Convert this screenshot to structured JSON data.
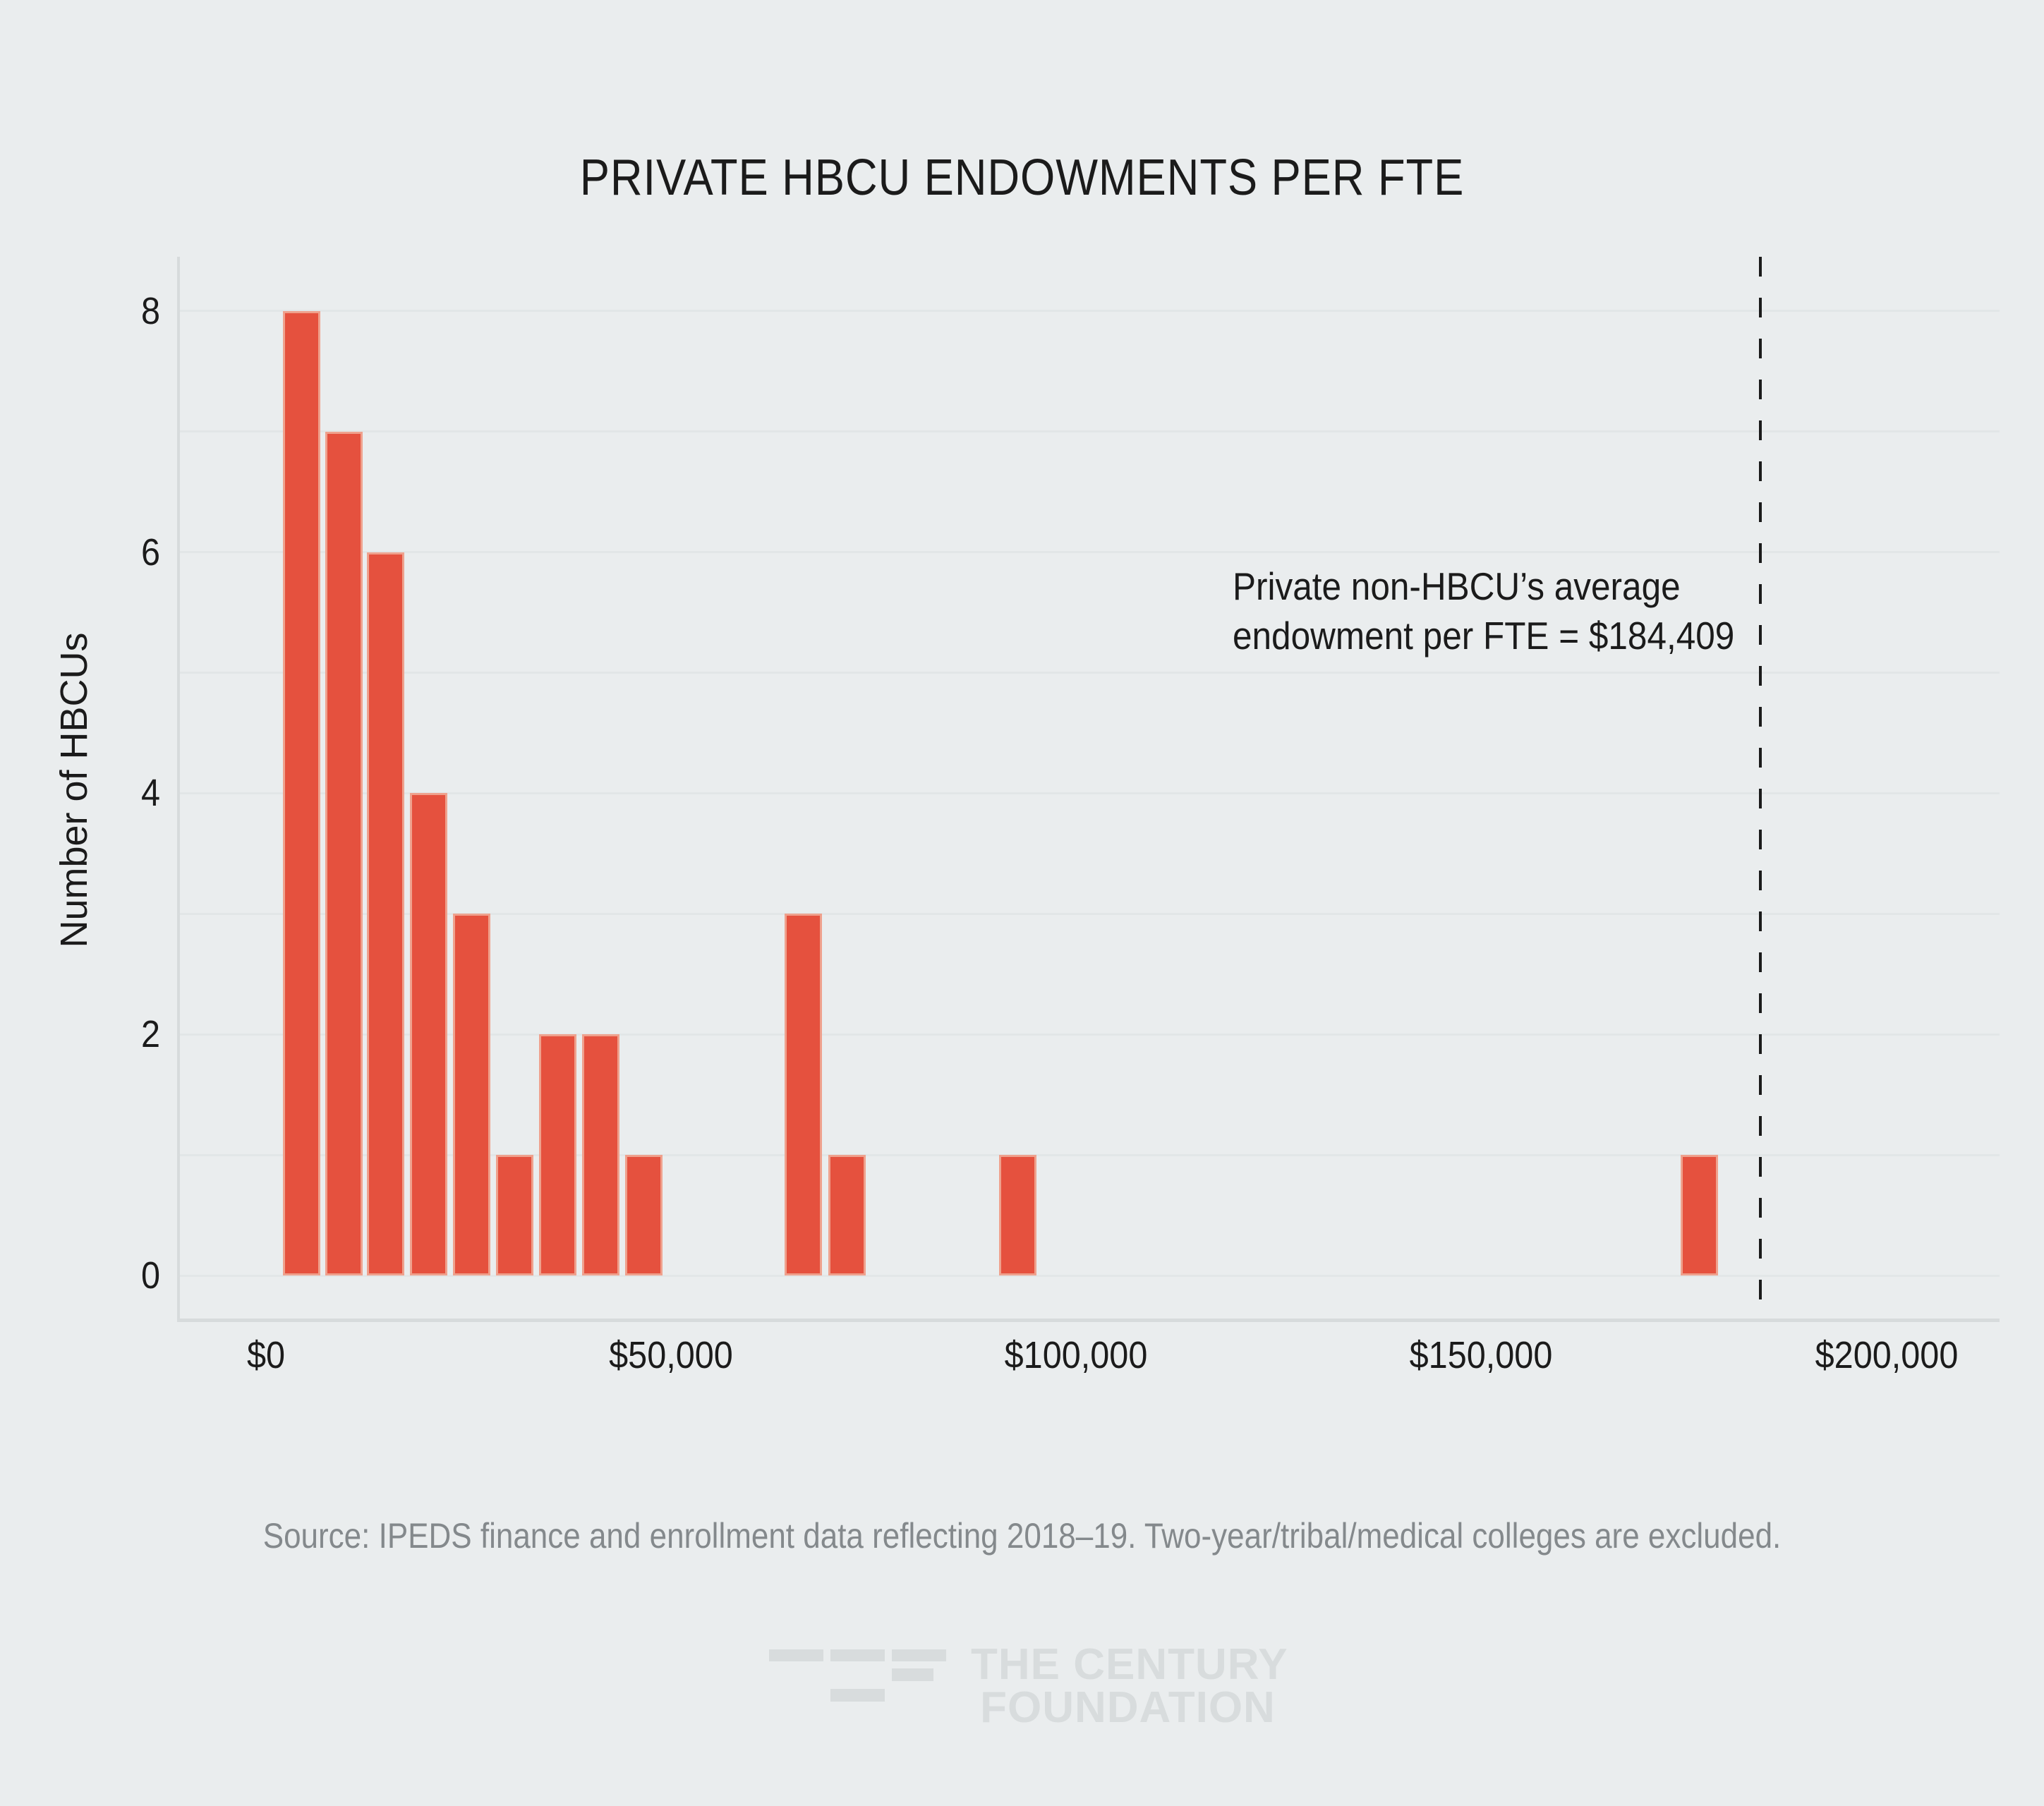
{
  "figure": {
    "title": "PRIVATE HBCU ENDOWMENTS PER FTE",
    "source_note": "Source: IPEDS finance and enrollment data reflecting 2018–19. Two-year/tribal/medical colleges are excluded.",
    "logo": {
      "line1": "THE CENTURY",
      "line2": "FOUNDATION"
    }
  },
  "chart_data": {
    "type": "bar",
    "subtype": "histogram",
    "title": "PRIVATE HBCU ENDOWMENTS PER FTE",
    "xlabel": "",
    "ylabel": "Number of HBCUs",
    "x_ticks": [
      {
        "label": "$0",
        "value": 0
      },
      {
        "label": "$50,000",
        "value": 50000
      },
      {
        "label": "$100,000",
        "value": 100000
      },
      {
        "label": "$150,000",
        "value": 150000
      },
      {
        "label": "$200,000",
        "value": 200000
      }
    ],
    "y_ticks": [
      0,
      2,
      4,
      6,
      8
    ],
    "ylim": [
      0,
      8.4
    ],
    "xlim_usd": [
      -11000,
      213000
    ],
    "grid": "horizontal gridlines at every integer count, 0 through 8",
    "legend": "none",
    "bin_width_usd_approx": 5300,
    "bars": [
      {
        "bin_center_usd": 4400,
        "count": 8
      },
      {
        "bin_center_usd": 9600,
        "count": 7
      },
      {
        "bin_center_usd": 14800,
        "count": 6
      },
      {
        "bin_center_usd": 20100,
        "count": 4
      },
      {
        "bin_center_usd": 25400,
        "count": 3
      },
      {
        "bin_center_usd": 30700,
        "count": 1
      },
      {
        "bin_center_usd": 36000,
        "count": 2
      },
      {
        "bin_center_usd": 41300,
        "count": 2
      },
      {
        "bin_center_usd": 46600,
        "count": 1
      },
      {
        "bin_center_usd": 66300,
        "count": 3
      },
      {
        "bin_center_usd": 71700,
        "count": 1
      },
      {
        "bin_center_usd": 92800,
        "count": 1
      },
      {
        "bin_center_usd": 176900,
        "count": 1
      }
    ],
    "reference_line": {
      "value_usd": 184409,
      "style": "dashed",
      "annotation_line1": "Private non-HBCU’s average",
      "annotation_line2": "endowment per FTE = $184,409"
    },
    "colors": {
      "bar_fill": "#E5513E",
      "bar_edge": "#EFA18D",
      "background": "#EAEDEE",
      "gridline": "#E2E6E7",
      "axis_line": "#D7DBDC",
      "text": "#1B1B1B",
      "muted_text": "#84898C",
      "logo": "#D8DCDD",
      "reference_line": "#1B1B1B"
    }
  }
}
